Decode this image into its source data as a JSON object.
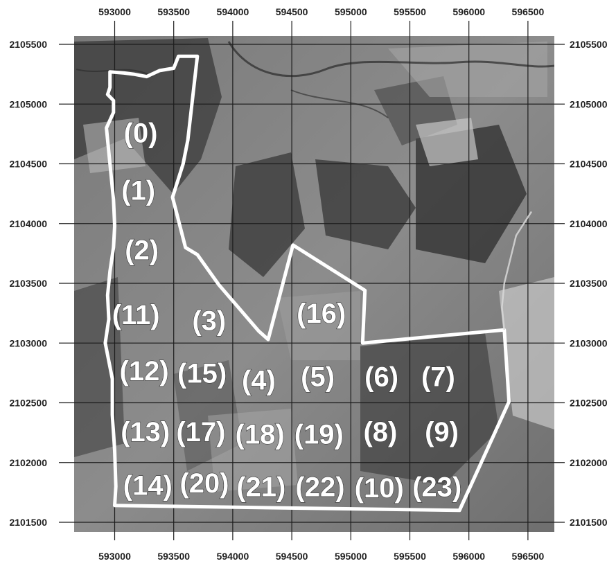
{
  "map": {
    "x_ticks": [
      "593000",
      "593500",
      "594000",
      "594500",
      "595000",
      "595500",
      "596000",
      "596500"
    ],
    "y_ticks": [
      "2105500",
      "2105000",
      "2104500",
      "2104000",
      "2103500",
      "2103000",
      "2102500",
      "2102000",
      "2101500"
    ],
    "x_range": [
      592650,
      596700
    ],
    "y_range": [
      2101450,
      2105500
    ],
    "grid": true,
    "imagery": "grayscale aerial photograph",
    "boundary_color": "#ffffff",
    "plot_labels": [
      {
        "text": "(0)",
        "e": 593220,
        "n": 2104760
      },
      {
        "text": "(1)",
        "e": 593200,
        "n": 2104280
      },
      {
        "text": "(2)",
        "e": 593230,
        "n": 2103780
      },
      {
        "text": "(11)",
        "e": 593180,
        "n": 2103240
      },
      {
        "text": "(3)",
        "e": 593800,
        "n": 2103190
      },
      {
        "text": "(16)",
        "e": 594750,
        "n": 2103250
      },
      {
        "text": "(12)",
        "e": 593250,
        "n": 2102770
      },
      {
        "text": "(15)",
        "e": 593740,
        "n": 2102750
      },
      {
        "text": "(4)",
        "e": 594220,
        "n": 2102690
      },
      {
        "text": "(5)",
        "e": 594720,
        "n": 2102720
      },
      {
        "text": "(6)",
        "e": 595260,
        "n": 2102720
      },
      {
        "text": "(7)",
        "e": 595740,
        "n": 2102720
      },
      {
        "text": "(13)",
        "e": 593260,
        "n": 2102260
      },
      {
        "text": "(17)",
        "e": 593730,
        "n": 2102260
      },
      {
        "text": "(18)",
        "e": 594230,
        "n": 2102240
      },
      {
        "text": "(19)",
        "e": 594730,
        "n": 2102240
      },
      {
        "text": "(8)",
        "e": 595250,
        "n": 2102260
      },
      {
        "text": "(9)",
        "e": 595770,
        "n": 2102260
      },
      {
        "text": "(14)",
        "e": 593280,
        "n": 2101810
      },
      {
        "text": "(20)",
        "e": 593760,
        "n": 2101830
      },
      {
        "text": "(21)",
        "e": 594240,
        "n": 2101800
      },
      {
        "text": "(22)",
        "e": 594740,
        "n": 2101800
      },
      {
        "text": "(10)",
        "e": 595240,
        "n": 2101790
      },
      {
        "text": "(23)",
        "e": 595730,
        "n": 2101800
      }
    ],
    "boundary": [
      [
        593700,
        2105400
      ],
      [
        593540,
        2105400
      ],
      [
        593500,
        2105300
      ],
      [
        593380,
        2105280
      ],
      [
        593270,
        2105230
      ],
      [
        593160,
        2105250
      ],
      [
        593080,
        2105260
      ],
      [
        592960,
        2105270
      ],
      [
        592960,
        2105140
      ],
      [
        592940,
        2105080
      ],
      [
        592990,
        2105030
      ],
      [
        592990,
        2104930
      ],
      [
        592930,
        2104800
      ],
      [
        592960,
        2104500
      ],
      [
        592990,
        2104200
      ],
      [
        593000,
        2103980
      ],
      [
        592990,
        2103800
      ],
      [
        592960,
        2103600
      ],
      [
        592940,
        2103400
      ],
      [
        592950,
        2103200
      ],
      [
        592920,
        2103000
      ],
      [
        592980,
        2102700
      ],
      [
        592980,
        2102400
      ],
      [
        593000,
        2102100
      ],
      [
        593010,
        2101800
      ],
      [
        593000,
        2101640
      ],
      [
        595920,
        2101600
      ],
      [
        596340,
        2102510
      ],
      [
        596300,
        2103110
      ],
      [
        595100,
        2103000
      ],
      [
        595120,
        2103440
      ],
      [
        594510,
        2103820
      ],
      [
        594300,
        2103030
      ],
      [
        594220,
        2103100
      ],
      [
        593880,
        2103490
      ],
      [
        593700,
        2103740
      ],
      [
        593600,
        2103800
      ],
      [
        593490,
        2104220
      ],
      [
        593580,
        2104500
      ],
      [
        593620,
        2104700
      ],
      [
        593700,
        2105400
      ]
    ],
    "road": [
      [
        596300,
        2103110
      ],
      [
        596280,
        2103300
      ],
      [
        596300,
        2103500
      ],
      [
        596400,
        2103900
      ],
      [
        596530,
        2104100
      ]
    ]
  }
}
